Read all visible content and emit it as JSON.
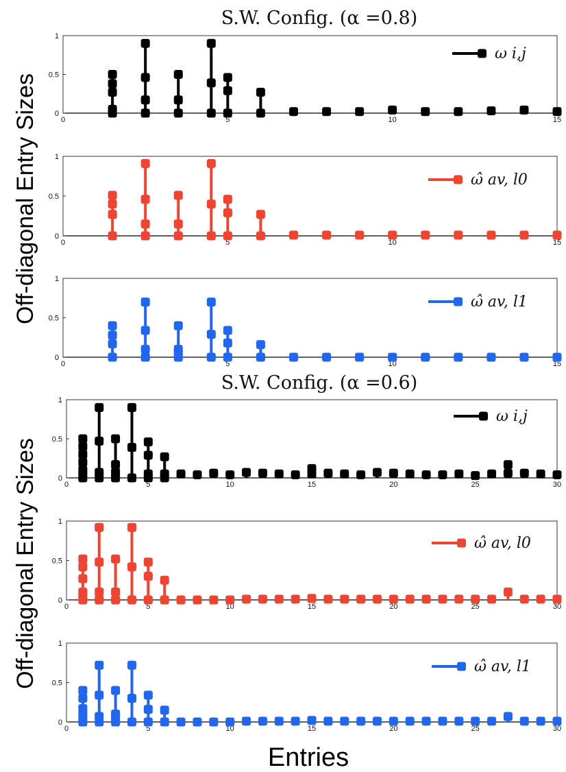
{
  "titles": [
    "S.W. Config. (α =0.8)",
    "S.W. Config. (α =0.6)"
  ],
  "ylabel": "Off-diagonal Entry Sizes",
  "xlabel": "Entries",
  "colors": {
    "omega": "#000000",
    "l0": "#ee4433",
    "l1": "#2266ee"
  },
  "chart_data": [
    {
      "type": "scatter",
      "style": "stem",
      "group": 0,
      "title": "S.W. Config. (α =0.8)",
      "legend": "ω i,j",
      "color": "#000000",
      "xlim": [
        0,
        15
      ],
      "ylim": [
        0,
        1
      ],
      "xticks": [
        0,
        5,
        10,
        15
      ],
      "yticks": [
        0,
        0.5,
        1
      ],
      "stems": [
        [
          1.5,
          [
            0,
            0.05,
            0.27,
            0.38,
            0.5
          ]
        ],
        [
          2.5,
          [
            0,
            0.17,
            0.46,
            0.9
          ]
        ],
        [
          3.5,
          [
            0,
            0.17,
            0.5
          ]
        ],
        [
          4.5,
          [
            0,
            0.39,
            0.9
          ]
        ],
        [
          5,
          [
            0,
            0.29,
            0.46
          ]
        ],
        [
          6,
          [
            0,
            0.27
          ]
        ],
        [
          7,
          [
            0.02
          ]
        ],
        [
          8,
          [
            0.02
          ]
        ],
        [
          9,
          [
            0.02
          ]
        ],
        [
          10,
          [
            0.04
          ]
        ],
        [
          11,
          [
            0.02
          ]
        ],
        [
          12,
          [
            0.02
          ]
        ],
        [
          13,
          [
            0.03
          ]
        ],
        [
          14,
          [
            0.04
          ]
        ],
        [
          15,
          [
            0.02
          ]
        ]
      ]
    },
    {
      "type": "scatter",
      "style": "stem",
      "group": 0,
      "legend": "ω̂ av, l0",
      "color": "#ee4433",
      "xlim": [
        0,
        15
      ],
      "ylim": [
        0,
        1
      ],
      "xticks": [
        0,
        5,
        10,
        15
      ],
      "yticks": [
        0,
        0.5,
        1
      ],
      "stems": [
        [
          1.5,
          [
            0,
            0.27,
            0.4,
            0.51
          ]
        ],
        [
          2.5,
          [
            0,
            0.15,
            0.46,
            0.91
          ]
        ],
        [
          3.5,
          [
            0,
            0.15,
            0.51
          ]
        ],
        [
          4.5,
          [
            0,
            0.4,
            0.91
          ]
        ],
        [
          5,
          [
            0,
            0.29,
            0.46
          ]
        ],
        [
          6,
          [
            0,
            0.27
          ]
        ],
        [
          7,
          [
            0.01
          ]
        ],
        [
          8,
          [
            0.01
          ]
        ],
        [
          9,
          [
            0.01
          ]
        ],
        [
          10,
          [
            0.01
          ]
        ],
        [
          11,
          [
            0.01
          ]
        ],
        [
          12,
          [
            0.01
          ]
        ],
        [
          13,
          [
            0.01
          ]
        ],
        [
          14,
          [
            0.01
          ]
        ],
        [
          15,
          [
            0.01
          ]
        ]
      ]
    },
    {
      "type": "scatter",
      "style": "stem",
      "group": 0,
      "legend": "ω̂ av, l1",
      "color": "#2266ee",
      "xlim": [
        0,
        15
      ],
      "ylim": [
        0,
        1
      ],
      "xticks": [
        0,
        5,
        10,
        15
      ],
      "yticks": [
        0,
        0.5,
        1
      ],
      "stems": [
        [
          1.5,
          [
            0,
            0.17,
            0.28,
            0.4
          ]
        ],
        [
          2.5,
          [
            0,
            0.1,
            0.34,
            0.7
          ]
        ],
        [
          3.5,
          [
            0,
            0.05,
            0.1,
            0.4
          ]
        ],
        [
          4.5,
          [
            0,
            0.29,
            0.7
          ]
        ],
        [
          5,
          [
            0,
            0.18,
            0.34
          ]
        ],
        [
          6,
          [
            0,
            0.16
          ]
        ],
        [
          7,
          [
            0
          ]
        ],
        [
          8,
          [
            0
          ]
        ],
        [
          9,
          [
            0
          ]
        ],
        [
          10,
          [
            0
          ]
        ],
        [
          11,
          [
            0
          ]
        ],
        [
          12,
          [
            0
          ]
        ],
        [
          13,
          [
            0
          ]
        ],
        [
          14,
          [
            0
          ]
        ],
        [
          15,
          [
            0
          ]
        ]
      ]
    },
    {
      "type": "scatter",
      "style": "stem",
      "group": 1,
      "title": "S.W. Config. (α =0.6)",
      "legend": "ω i,j",
      "color": "#000000",
      "xlim": [
        0,
        30
      ],
      "ylim": [
        0,
        1
      ],
      "xticks": [
        0,
        5,
        10,
        15,
        20,
        25,
        30
      ],
      "yticks": [
        0,
        0.5,
        1
      ],
      "stems": [
        [
          1,
          [
            0,
            0.05,
            0.1,
            0.2,
            0.3,
            0.4,
            0.5
          ]
        ],
        [
          2,
          [
            0,
            0.07,
            0.47,
            0.9
          ]
        ],
        [
          3,
          [
            0,
            0.07,
            0.17,
            0.5
          ]
        ],
        [
          4,
          [
            0,
            0.39,
            0.9
          ]
        ],
        [
          5,
          [
            0,
            0.05,
            0.29,
            0.46
          ]
        ],
        [
          6,
          [
            0,
            0.05,
            0.27
          ]
        ],
        [
          7,
          [
            0.05
          ]
        ],
        [
          8,
          [
            0.04
          ]
        ],
        [
          9,
          [
            0.06
          ]
        ],
        [
          10,
          [
            0.04
          ]
        ],
        [
          11,
          [
            0.07
          ]
        ],
        [
          12,
          [
            0.06
          ]
        ],
        [
          13,
          [
            0.05
          ]
        ],
        [
          14,
          [
            0.04
          ]
        ],
        [
          15,
          [
            0.05,
            0.12
          ]
        ],
        [
          16,
          [
            0.06
          ]
        ],
        [
          17,
          [
            0.05
          ]
        ],
        [
          18,
          [
            0.04
          ]
        ],
        [
          19,
          [
            0.07
          ]
        ],
        [
          20,
          [
            0.06
          ]
        ],
        [
          21,
          [
            0.05
          ]
        ],
        [
          22,
          [
            0.04
          ]
        ],
        [
          23,
          [
            0.04
          ]
        ],
        [
          24,
          [
            0.05
          ]
        ],
        [
          25,
          [
            0.03
          ]
        ],
        [
          26,
          [
            0.05
          ]
        ],
        [
          27,
          [
            0.06,
            0.17
          ]
        ],
        [
          28,
          [
            0.06
          ]
        ],
        [
          29,
          [
            0.05
          ]
        ],
        [
          30,
          [
            0.04
          ]
        ]
      ]
    },
    {
      "type": "scatter",
      "style": "stem",
      "group": 1,
      "legend": "ω̂ av, l0",
      "color": "#ee4433",
      "xlim": [
        0,
        30
      ],
      "ylim": [
        0,
        1
      ],
      "xticks": [
        0,
        5,
        10,
        15,
        20,
        25,
        30
      ],
      "yticks": [
        0,
        0.5,
        1
      ],
      "stems": [
        [
          1,
          [
            0,
            0.05,
            0.1,
            0.27,
            0.42,
            0.52
          ]
        ],
        [
          2,
          [
            0,
            0.1,
            0.48,
            0.92
          ]
        ],
        [
          3,
          [
            0,
            0.1,
            0.52
          ]
        ],
        [
          4,
          [
            0,
            0.42,
            0.92
          ]
        ],
        [
          5,
          [
            0,
            0.3,
            0.48
          ]
        ],
        [
          6,
          [
            0,
            0.25
          ]
        ],
        [
          7,
          [
            0
          ]
        ],
        [
          8,
          [
            0
          ]
        ],
        [
          9,
          [
            0
          ]
        ],
        [
          10,
          [
            0
          ]
        ],
        [
          11,
          [
            0.01
          ]
        ],
        [
          12,
          [
            0.01
          ]
        ],
        [
          13,
          [
            0.01
          ]
        ],
        [
          14,
          [
            0.01
          ]
        ],
        [
          15,
          [
            0.02
          ]
        ],
        [
          16,
          [
            0.01
          ]
        ],
        [
          17,
          [
            0.01
          ]
        ],
        [
          18,
          [
            0.01
          ]
        ],
        [
          19,
          [
            0.01
          ]
        ],
        [
          20,
          [
            0.01
          ]
        ],
        [
          21,
          [
            0.01
          ]
        ],
        [
          22,
          [
            0.01
          ]
        ],
        [
          23,
          [
            0.01
          ]
        ],
        [
          24,
          [
            0.01
          ]
        ],
        [
          25,
          [
            0.01
          ]
        ],
        [
          26,
          [
            0.01
          ]
        ],
        [
          27,
          [
            0.1
          ]
        ],
        [
          28,
          [
            0.01
          ]
        ],
        [
          29,
          [
            0.01
          ]
        ],
        [
          30,
          [
            0.01
          ]
        ]
      ]
    },
    {
      "type": "scatter",
      "style": "stem",
      "group": 1,
      "legend": "ω̂ av, l1",
      "color": "#2266ee",
      "xlim": [
        0,
        30
      ],
      "ylim": [
        0,
        1
      ],
      "xticks": [
        0,
        5,
        10,
        15,
        20,
        25,
        30
      ],
      "yticks": [
        0,
        0.5,
        1
      ],
      "stems": [
        [
          1,
          [
            0,
            0.05,
            0.1,
            0.17,
            0.3,
            0.4
          ]
        ],
        [
          2,
          [
            0,
            0.07,
            0.34,
            0.72
          ]
        ],
        [
          3,
          [
            0,
            0.07,
            0.1,
            0.4
          ]
        ],
        [
          4,
          [
            0,
            0.3,
            0.72
          ]
        ],
        [
          5,
          [
            0,
            0.16,
            0.34
          ]
        ],
        [
          6,
          [
            0,
            0.15
          ]
        ],
        [
          7,
          [
            0
          ]
        ],
        [
          8,
          [
            0
          ]
        ],
        [
          9,
          [
            0
          ]
        ],
        [
          10,
          [
            0
          ]
        ],
        [
          11,
          [
            0.01
          ]
        ],
        [
          12,
          [
            0.01
          ]
        ],
        [
          13,
          [
            0.01
          ]
        ],
        [
          14,
          [
            0.01
          ]
        ],
        [
          15,
          [
            0.02
          ]
        ],
        [
          16,
          [
            0.01
          ]
        ],
        [
          17,
          [
            0.01
          ]
        ],
        [
          18,
          [
            0.01
          ]
        ],
        [
          19,
          [
            0.01
          ]
        ],
        [
          20,
          [
            0.01
          ]
        ],
        [
          21,
          [
            0.01
          ]
        ],
        [
          22,
          [
            0.01
          ]
        ],
        [
          23,
          [
            0.01
          ]
        ],
        [
          24,
          [
            0.01
          ]
        ],
        [
          25,
          [
            0.01
          ]
        ],
        [
          26,
          [
            0.01
          ]
        ],
        [
          27,
          [
            0.07
          ]
        ],
        [
          28,
          [
            0.01
          ]
        ],
        [
          29,
          [
            0.01
          ]
        ],
        [
          30,
          [
            0.01
          ]
        ]
      ]
    }
  ]
}
